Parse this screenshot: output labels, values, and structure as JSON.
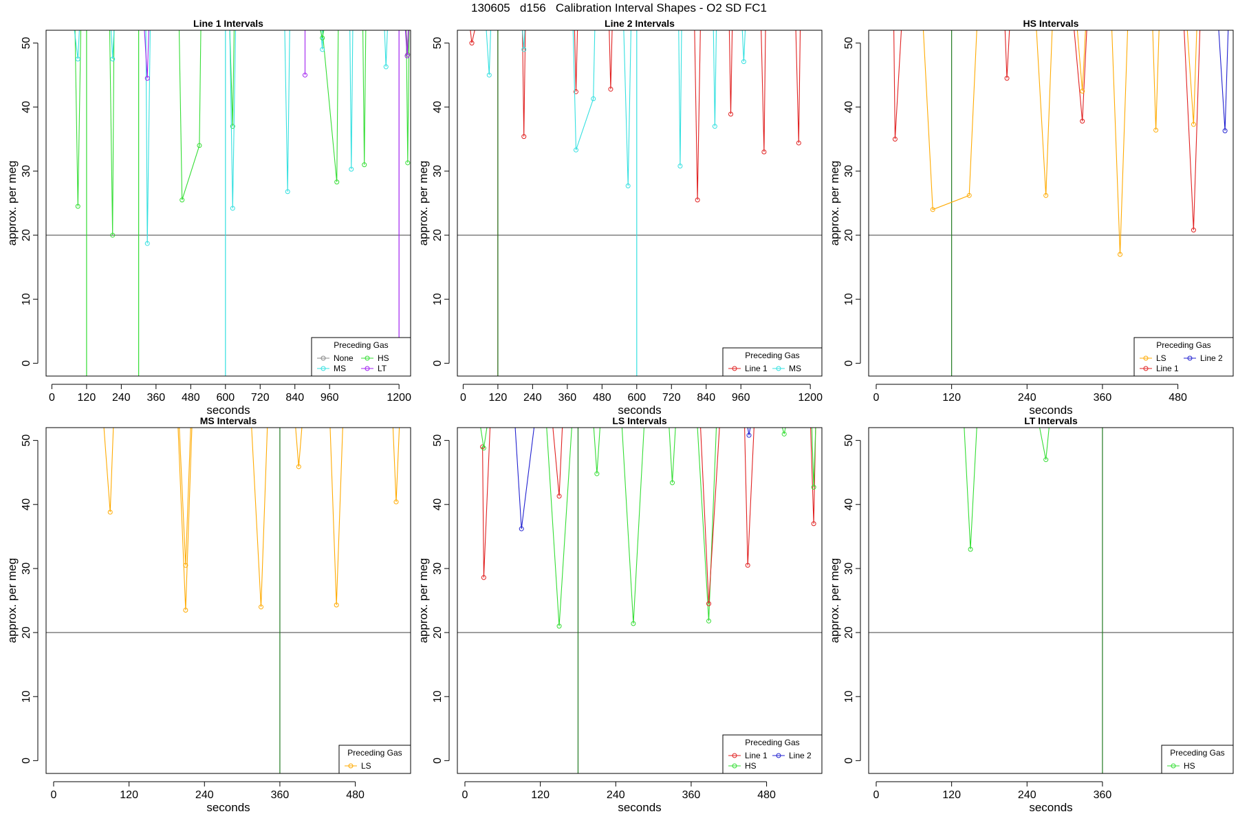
{
  "title": "130605   d156   Calibration Interval Shapes - O2 SD FC1",
  "colors": {
    "None": "#888888",
    "HS": "#33dd33",
    "MS": "#33e0e0",
    "LT": "#a020f0",
    "Line 1": "#e02020",
    "Line 2": "#2020d0",
    "LS": "#ffaa00",
    "refline": "#555555",
    "vline": "#207a20"
  },
  "chart_data": [
    {
      "type": "line",
      "title": "Line 1 Intervals",
      "xlabel": "seconds",
      "ylabel": "approx. per meg",
      "xlim": [
        -20,
        1240
      ],
      "ylim": [
        -2,
        52
      ],
      "xticks": [
        0,
        120,
        240,
        360,
        480,
        600,
        720,
        840,
        960,
        1200
      ],
      "yticks": [
        0,
        10,
        20,
        30,
        40,
        50
      ],
      "hline": 20,
      "vlines": [
        {
          "x": 120,
          "color": "HS"
        },
        {
          "x": 300,
          "color": "HS"
        },
        {
          "x": 600,
          "color": "MS"
        },
        {
          "x": 1200,
          "color": "LT"
        }
      ],
      "legend": {
        "title": "Preceding Gas",
        "position": "bottom-right",
        "entries": [
          "None",
          "HS",
          "MS",
          "LT"
        ],
        "ncol": 2
      },
      "series": [
        {
          "gas": "HS",
          "x": [
            80,
            90,
            100
          ],
          "y": [
            52,
            24.5,
            52
          ]
        },
        {
          "gas": "MS",
          "x": [
            78,
            90,
            95
          ],
          "y": [
            52,
            47.5,
            52
          ]
        },
        {
          "gas": "HS",
          "x": [
            200,
            210,
            215
          ],
          "y": [
            52,
            20,
            52
          ]
        },
        {
          "gas": "MS",
          "x": [
            205,
            210,
            215
          ],
          "y": [
            52,
            47.5,
            52
          ]
        },
        {
          "gas": "MS",
          "x": [
            325,
            330,
            340
          ],
          "y": [
            52,
            18.7,
            52
          ]
        },
        {
          "gas": "LT",
          "x": [
            320,
            330,
            335
          ],
          "y": [
            52,
            44.5,
            52
          ]
        },
        {
          "gas": "HS",
          "x": [
            440,
            450,
            510,
            515
          ],
          "y": [
            52,
            25.5,
            34,
            52
          ]
        },
        {
          "gas": "HS",
          "x": [
            615,
            625,
            630
          ],
          "y": [
            52,
            37,
            52
          ]
        },
        {
          "gas": "MS",
          "x": [
            615,
            625,
            635
          ],
          "y": [
            52,
            24.2,
            52
          ]
        },
        {
          "gas": "MS",
          "x": [
            805,
            815,
            822
          ],
          "y": [
            52,
            26.8,
            52
          ]
        },
        {
          "gas": "LT",
          "x": [
            875,
            875,
            875
          ],
          "y": [
            52,
            45,
            52
          ]
        },
        {
          "gas": "HS",
          "x": [
            935,
            985,
            990
          ],
          "y": [
            52,
            28.3,
            52
          ]
        },
        {
          "gas": "MS",
          "x": [
            930,
            935,
            937
          ],
          "y": [
            52,
            49,
            52
          ]
        },
        {
          "gas": "HS",
          "x": [
            928,
            935,
            940
          ],
          "y": [
            52,
            50.8,
            52
          ]
        },
        {
          "gas": "MS",
          "x": [
            1030,
            1035,
            1040
          ],
          "y": [
            52,
            30.3,
            52
          ]
        },
        {
          "gas": "HS",
          "x": [
            1075,
            1080,
            1085
          ],
          "y": [
            52,
            31,
            52
          ]
        },
        {
          "gas": "MS",
          "x": [
            1150,
            1155,
            1160
          ],
          "y": [
            52,
            46.3,
            52
          ]
        },
        {
          "gas": "HS",
          "x": [
            1225,
            1230,
            1235
          ],
          "y": [
            52,
            31.3,
            52
          ]
        },
        {
          "gas": "None",
          "x": [
            1225,
            1230,
            1235
          ],
          "y": [
            52,
            48.2,
            52
          ]
        },
        {
          "gas": "LT",
          "x": [
            1222,
            1228,
            1232
          ],
          "y": [
            52,
            48,
            52
          ]
        }
      ]
    },
    {
      "type": "line",
      "title": "Line 2 Intervals",
      "xlabel": "seconds",
      "ylabel": "approx. per meg",
      "xlim": [
        -20,
        1240
      ],
      "ylim": [
        -2,
        52
      ],
      "xticks": [
        0,
        120,
        240,
        360,
        480,
        600,
        720,
        840,
        960,
        1200
      ],
      "yticks": [
        0,
        10,
        20,
        30,
        40,
        50
      ],
      "hline": 20,
      "vlines": [
        {
          "x": 120,
          "color": "Line 1"
        },
        {
          "x": 120,
          "color": "vline"
        },
        {
          "x": 600,
          "color": "MS"
        }
      ],
      "legend": {
        "title": "Preceding Gas",
        "position": "bottom-right",
        "entries": [
          "Line 1",
          "MS"
        ],
        "ncol": 2
      },
      "series": [
        {
          "gas": "Line 1",
          "x": [
            25,
            30,
            40
          ],
          "y": [
            52,
            50,
            52
          ]
        },
        {
          "gas": "MS",
          "x": [
            80,
            90,
            95
          ],
          "y": [
            52,
            45,
            52
          ]
        },
        {
          "gas": "Line 1",
          "x": [
            205,
            210,
            215
          ],
          "y": [
            52,
            35.4,
            52
          ]
        },
        {
          "gas": "MS",
          "x": [
            205,
            210,
            213
          ],
          "y": [
            52,
            49,
            52
          ]
        },
        {
          "gas": "Line 1",
          "x": [
            385,
            390,
            395
          ],
          "y": [
            52,
            42.4,
            52
          ]
        },
        {
          "gas": "MS",
          "x": [
            380,
            390,
            450,
            455
          ],
          "y": [
            52,
            33.3,
            41.3,
            52
          ]
        },
        {
          "gas": "Line 1",
          "x": [
            505,
            510,
            515
          ],
          "y": [
            52,
            42.8,
            52
          ]
        },
        {
          "gas": "MS",
          "x": [
            555,
            570,
            580
          ],
          "y": [
            52,
            27.7,
            52
          ]
        },
        {
          "gas": "MS",
          "x": [
            745,
            750,
            755
          ],
          "y": [
            52,
            30.8,
            52
          ]
        },
        {
          "gas": "Line 1",
          "x": [
            800,
            810,
            820
          ],
          "y": [
            52,
            25.5,
            52
          ]
        },
        {
          "gas": "MS",
          "x": [
            865,
            870,
            875
          ],
          "y": [
            52,
            37,
            52
          ]
        },
        {
          "gas": "Line 1",
          "x": [
            920,
            925,
            930
          ],
          "y": [
            52,
            38.9,
            52
          ]
        },
        {
          "gas": "MS",
          "x": [
            965,
            970,
            975
          ],
          "y": [
            52,
            47.1,
            52
          ]
        },
        {
          "gas": "Line 1",
          "x": [
            1030,
            1040,
            1045
          ],
          "y": [
            52,
            33,
            52
          ]
        },
        {
          "gas": "Line 1",
          "x": [
            1150,
            1160,
            1165
          ],
          "y": [
            52,
            34.4,
            52
          ]
        }
      ]
    },
    {
      "type": "line",
      "title": "HS Intervals",
      "xlabel": "seconds",
      "ylabel": "approx. per meg",
      "xlim": [
        -12,
        568
      ],
      "ylim": [
        -2,
        52
      ],
      "xticks": [
        0,
        120,
        240,
        360,
        480
      ],
      "yticks": [
        0,
        10,
        20,
        30,
        40,
        50
      ],
      "hline": 20,
      "vlines": [
        {
          "x": 120,
          "color": "vline"
        }
      ],
      "legend": {
        "title": "Preceding Gas",
        "position": "bottom-right",
        "entries": [
          "LS",
          "Line 2",
          "Line 1"
        ],
        "ncol": 2
      },
      "series": [
        {
          "gas": "Line 1",
          "x": [
            28,
            30,
            40
          ],
          "y": [
            52,
            35,
            52
          ]
        },
        {
          "gas": "LS",
          "x": [
            75,
            90,
            148,
            160
          ],
          "y": [
            52,
            24,
            26.2,
            52
          ]
        },
        {
          "gas": "Line 1",
          "x": [
            205,
            208,
            212
          ],
          "y": [
            52,
            44.5,
            52
          ]
        },
        {
          "gas": "LS",
          "x": [
            255,
            270,
            280
          ],
          "y": [
            52,
            26.2,
            52
          ]
        },
        {
          "gas": "Line 1",
          "x": [
            315,
            328,
            335
          ],
          "y": [
            52,
            37.8,
            52
          ]
        },
        {
          "gas": "LS",
          "x": [
            320,
            328,
            333
          ],
          "y": [
            52,
            42.5,
            52
          ]
        },
        {
          "gas": "LS",
          "x": [
            375,
            388,
            400
          ],
          "y": [
            52,
            17,
            52
          ]
        },
        {
          "gas": "LS",
          "x": [
            440,
            445,
            450
          ],
          "y": [
            52,
            36.4,
            52
          ]
        },
        {
          "gas": "Line 1",
          "x": [
            490,
            505,
            515
          ],
          "y": [
            52,
            20.8,
            52
          ]
        },
        {
          "gas": "LS",
          "x": [
            495,
            505,
            510
          ],
          "y": [
            52,
            37.3,
            52
          ]
        },
        {
          "gas": "Line 2",
          "x": [
            545,
            555,
            560
          ],
          "y": [
            52,
            36.3,
            52
          ]
        }
      ]
    },
    {
      "type": "line",
      "title": "MS Intervals",
      "xlabel": "seconds",
      "ylabel": "approx. per meg",
      "xlim": [
        -12,
        568
      ],
      "ylim": [
        -2,
        52
      ],
      "xticks": [
        0,
        120,
        240,
        360,
        480
      ],
      "yticks": [
        0,
        10,
        20,
        30,
        40,
        50
      ],
      "hline": 20,
      "vlines": [
        {
          "x": 360,
          "color": "vline"
        }
      ],
      "legend": {
        "title": "Preceding Gas",
        "position": "bottom-right",
        "entries": [
          "LS"
        ],
        "ncol": 1
      },
      "series": [
        {
          "gas": "LS",
          "x": [
            80,
            90,
            95
          ],
          "y": [
            52,
            38.8,
            52
          ]
        },
        {
          "gas": "LS",
          "x": [
            198,
            210,
            220
          ],
          "y": [
            52,
            23.5,
            52
          ]
        },
        {
          "gas": "LS",
          "x": [
            200,
            210,
            218
          ],
          "y": [
            52,
            30.5,
            52
          ]
        },
        {
          "gas": "LS",
          "x": [
            315,
            330,
            340
          ],
          "y": [
            52,
            24,
            52
          ]
        },
        {
          "gas": "LS",
          "x": [
            385,
            390,
            395
          ],
          "y": [
            52,
            45.9,
            52
          ]
        },
        {
          "gas": "LS",
          "x": [
            440,
            450,
            460
          ],
          "y": [
            52,
            24.3,
            52
          ]
        },
        {
          "gas": "LS",
          "x": [
            540,
            545,
            550
          ],
          "y": [
            52,
            40.4,
            52
          ]
        }
      ]
    },
    {
      "type": "line",
      "title": "LS Intervals",
      "xlabel": "seconds",
      "ylabel": "approx. per meg",
      "xlim": [
        -12,
        568
      ],
      "ylim": [
        -2,
        52
      ],
      "xticks": [
        0,
        120,
        240,
        360,
        480
      ],
      "yticks": [
        0,
        10,
        20,
        30,
        40,
        50
      ],
      "hline": 20,
      "vlines": [
        {
          "x": 180,
          "color": "vline"
        }
      ],
      "legend": {
        "title": "Preceding Gas",
        "position": "bottom-right",
        "entries": [
          "Line 1",
          "Line 2",
          "HS"
        ],
        "ncol": 2
      },
      "series": [
        {
          "gas": "Line 1",
          "x": [
            28,
            30,
            40
          ],
          "y": [
            49,
            28.6,
            52
          ]
        },
        {
          "gas": "HS",
          "x": [
            25,
            30,
            35
          ],
          "y": [
            52,
            48.8,
            52
          ]
        },
        {
          "gas": "Line 2",
          "x": [
            80,
            90,
            110
          ],
          "y": [
            52,
            36.2,
            52
          ]
        },
        {
          "gas": "HS",
          "x": [
            130,
            150,
            170
          ],
          "y": [
            52,
            21,
            52
          ]
        },
        {
          "gas": "Line 1",
          "x": [
            140,
            150,
            155
          ],
          "y": [
            52,
            41.3,
            52
          ]
        },
        {
          "gas": "HS",
          "x": [
            205,
            210,
            215
          ],
          "y": [
            52,
            44.8,
            52
          ]
        },
        {
          "gas": "HS",
          "x": [
            250,
            268,
            285
          ],
          "y": [
            52,
            21.4,
            52
          ]
        },
        {
          "gas": "HS",
          "x": [
            325,
            330,
            335
          ],
          "y": [
            52,
            43.4,
            52
          ]
        },
        {
          "gas": "HS",
          "x": [
            370,
            388,
            400
          ],
          "y": [
            52,
            21.8,
            52
          ]
        },
        {
          "gas": "Line 1",
          "x": [
            375,
            388,
            405
          ],
          "y": [
            52,
            24.5,
            52
          ]
        },
        {
          "gas": "Line 1",
          "x": [
            445,
            450,
            460
          ],
          "y": [
            52,
            30.5,
            52
          ]
        },
        {
          "gas": "Line 2",
          "x": [
            450,
            452,
            454
          ],
          "y": [
            52,
            50.8,
            52
          ]
        },
        {
          "gas": "HS",
          "x": [
            505,
            508,
            510
          ],
          "y": [
            52,
            51,
            52
          ]
        },
        {
          "gas": "Line 1",
          "x": [
            550,
            555,
            558
          ],
          "y": [
            52,
            37,
            52
          ]
        },
        {
          "gas": "HS",
          "x": [
            552,
            555,
            558
          ],
          "y": [
            52,
            42.7,
            52
          ]
        }
      ]
    },
    {
      "type": "line",
      "title": "LT Intervals",
      "xlabel": "seconds",
      "ylabel": "approx. per meg",
      "xlim": [
        -12,
        568
      ],
      "ylim": [
        -2,
        52
      ],
      "xticks": [
        0,
        120,
        240,
        360
      ],
      "yticks": [
        0,
        10,
        20,
        30,
        40,
        50
      ],
      "hline": 20,
      "vlines": [
        {
          "x": 360,
          "color": "vline"
        }
      ],
      "legend": {
        "title": "Preceding Gas",
        "position": "bottom-right",
        "entries": [
          "HS"
        ],
        "ncol": 1
      },
      "series": [
        {
          "gas": "HS",
          "x": [
            140,
            150,
            160
          ],
          "y": [
            52,
            33,
            52
          ]
        },
        {
          "gas": "HS",
          "x": [
            260,
            270,
            275
          ],
          "y": [
            52,
            47,
            52
          ]
        }
      ]
    }
  ]
}
